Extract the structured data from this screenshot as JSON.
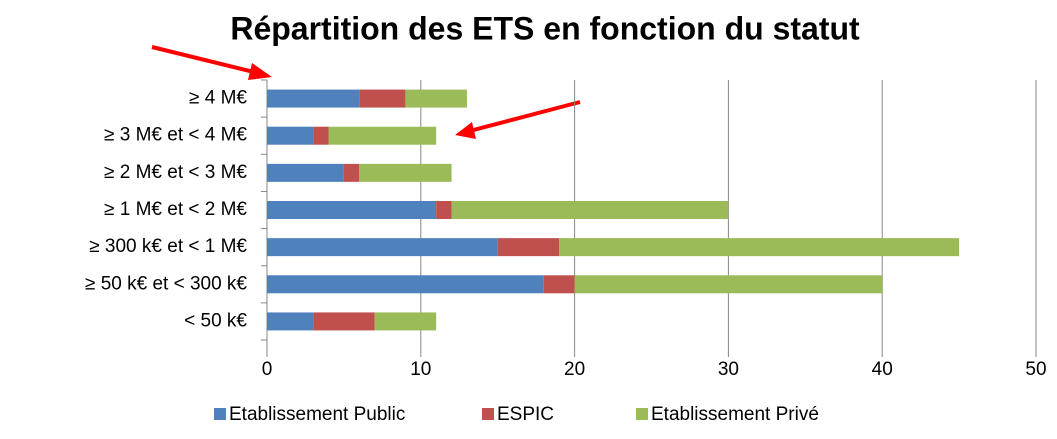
{
  "chart_data": {
    "type": "stacked-bar-horizontal",
    "title": "Répartition des ETS en fonction du statut",
    "categories": [
      "≥ 4 M€",
      "≥ 3 M€ et < 4 M€",
      "≥ 2 M€ et < 3 M€",
      "≥ 1 M€ et < 2 M€",
      "≥ 300 k€ et < 1 M€",
      "≥ 50 k€ et < 300 k€",
      "< 50 k€"
    ],
    "series": [
      {
        "name": "Etablissement Public",
        "color": "#4f81bd",
        "values": [
          6,
          3,
          5,
          11,
          15,
          18,
          3
        ]
      },
      {
        "name": "ESPIC",
        "color": "#c0504d",
        "values": [
          3,
          1,
          1,
          1,
          4,
          2,
          4
        ]
      },
      {
        "name": "Etablissement Privé",
        "color": "#9bbb59",
        "values": [
          4,
          7,
          6,
          18,
          26,
          20,
          4
        ]
      }
    ],
    "xlim": [
      0,
      50
    ],
    "xticks": [
      0,
      10,
      20,
      30,
      40,
      50
    ],
    "grid": true,
    "legend": "bottom"
  }
}
